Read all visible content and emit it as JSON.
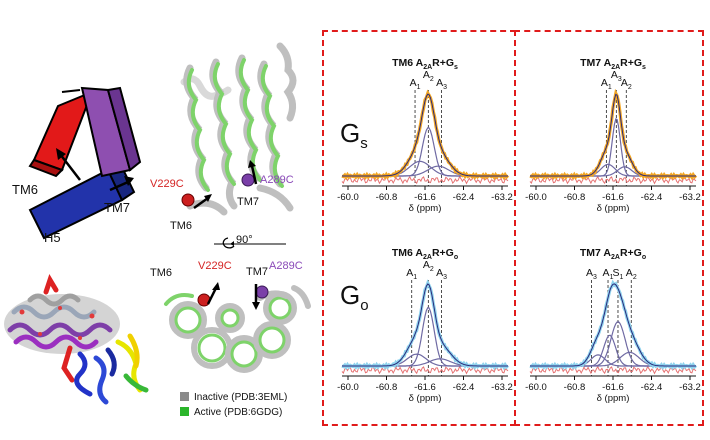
{
  "cartoon": {
    "tm6": "TM6",
    "tm7": "TM7",
    "h5": "H5"
  },
  "structure_top": {
    "mutant_1": "V229C",
    "mutant_2": "A289C",
    "tm6": "TM6",
    "tm7": "TM7",
    "rotation": "90°"
  },
  "structure_bottom": {
    "tm6": "TM6",
    "tm7": "TM7",
    "mutant_1": "V229C",
    "mutant_2": "A289C"
  },
  "legend": {
    "inactive": "Inactive (PDB:3EML)",
    "active": "Active (PDB:6GDG)",
    "inactive_color": "#8a8a8a",
    "active_color": "#2bb52b"
  },
  "rows": {
    "gs": {
      "main": "G",
      "sub": "s"
    },
    "go": {
      "main": "G",
      "sub": "o"
    }
  },
  "colors": {
    "box_border": "#e01b1b",
    "gs_spectrum": "#f3a623",
    "go_spectrum": "#8fd3ee",
    "component": "#6f6aa3",
    "fit": "#2a2a7a",
    "residual": "#e57373"
  },
  "panels": [
    {
      "title_pre": "TM6 A",
      "title_sub": "2A",
      "title_post": "R+G",
      "title_end": "s",
      "xlabel": "δ (ppm)",
      "ticks": [
        "-60.0",
        "-60.8",
        "-61.6",
        "-62.4",
        "-63.2"
      ],
      "peaks": [
        {
          "main": "A",
          "sub": "1"
        },
        {
          "main": "A",
          "sub": "2"
        },
        {
          "main": "A",
          "sub": "3"
        }
      ]
    },
    {
      "title_pre": "TM7 A",
      "title_sub": "2A",
      "title_post": "R+G",
      "title_end": "s",
      "xlabel": "δ (ppm)",
      "ticks": [
        "-60.0",
        "-60.8",
        "-61.6",
        "-62.4",
        "-63.2"
      ],
      "peaks": [
        {
          "main": "A",
          "sub": "1"
        },
        {
          "main": "A",
          "sub": "3"
        },
        {
          "main": "A",
          "sub": "2"
        }
      ]
    },
    {
      "title_pre": "TM6 A",
      "title_sub": "2A",
      "title_post": "R+G",
      "title_end": "o",
      "xlabel": "δ (ppm)",
      "ticks": [
        "-60.0",
        "-60.8",
        "-61.6",
        "-62.4",
        "-63.2"
      ],
      "peaks": [
        {
          "main": "A",
          "sub": "1"
        },
        {
          "main": "A",
          "sub": "2"
        },
        {
          "main": "A",
          "sub": "3"
        }
      ]
    },
    {
      "title_pre": "TM7 A",
      "title_sub": "2A",
      "title_post": "R+G",
      "title_end": "o",
      "xlabel": "δ (ppm)",
      "ticks": [
        "-60.0",
        "-60.8",
        "-61.6",
        "-62.4",
        "-63.2"
      ],
      "peaks": [
        {
          "main": "A",
          "sub": "3"
        },
        {
          "main": "A",
          "sub": "1"
        },
        {
          "main": "S",
          "sub": "1"
        },
        {
          "main": "A",
          "sub": "2"
        }
      ]
    }
  ]
}
